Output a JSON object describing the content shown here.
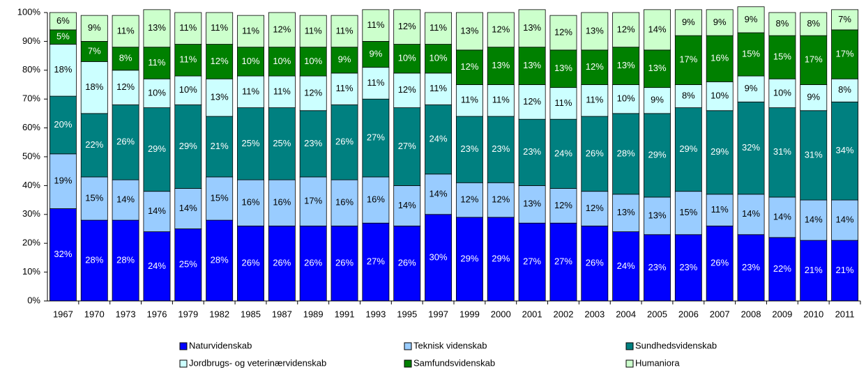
{
  "chart_data": {
    "type": "stacked_bar",
    "categories": [
      "1967",
      "1970",
      "1973",
      "1976",
      "1979",
      "1982",
      "1985",
      "1987",
      "1989",
      "1991",
      "1993",
      "1995",
      "1997",
      "1999",
      "2000",
      "2001",
      "2002",
      "2003",
      "2004",
      "2005",
      "2006",
      "2007",
      "2008",
      "2009",
      "2010",
      "2011"
    ],
    "ylim": [
      0,
      100
    ],
    "yticks": [
      {
        "value": 0,
        "label": "0%"
      },
      {
        "value": 10,
        "label": "10%"
      },
      {
        "value": 20,
        "label": "20%"
      },
      {
        "value": 30,
        "label": "30%"
      },
      {
        "value": 40,
        "label": "40%"
      },
      {
        "value": 50,
        "label": "50%"
      },
      {
        "value": 60,
        "label": "60%"
      },
      {
        "value": 70,
        "label": "70%"
      },
      {
        "value": 80,
        "label": "80%"
      },
      {
        "value": 90,
        "label": "90%"
      },
      {
        "value": 100,
        "label": "100%"
      }
    ],
    "legend": "bottom",
    "series": [
      {
        "name": "Naturvidenskab",
        "color": "#0000ff",
        "label_color": "#ffffff",
        "values": [
          32,
          28,
          28,
          24,
          25,
          28,
          26,
          26,
          26,
          26,
          27,
          26,
          30,
          29,
          29,
          27,
          27,
          26,
          24,
          23,
          23,
          26,
          23,
          22,
          21,
          21
        ],
        "value_labels": [
          "32%",
          "28%",
          "28%",
          "24%",
          "25%",
          "28%",
          "26%",
          "26%",
          "26%",
          "26%",
          "27%",
          "26%",
          "30%",
          "29%",
          "29%",
          "27%",
          "27%",
          "26%",
          "24%",
          "23%",
          "23%",
          "26%",
          "23%",
          "22%",
          "21%",
          "21%"
        ]
      },
      {
        "name": "Teknisk videnskab",
        "color": "#99ccff",
        "label_color": "#000000",
        "values": [
          19,
          15,
          14,
          14,
          14,
          15,
          16,
          16,
          17,
          16,
          16,
          14,
          14,
          12,
          12,
          13,
          12,
          12,
          13,
          13,
          15,
          11,
          14,
          14,
          14,
          14
        ],
        "value_labels": [
          "19%",
          "15%",
          "14%",
          "14%",
          "14%",
          "15%",
          "16%",
          "16%",
          "17%",
          "16%",
          "16%",
          "14%",
          "14%",
          "12%",
          "12%",
          "13%",
          "12%",
          "12%",
          "13%",
          "13%",
          "15%",
          "11%",
          "14%",
          "14%",
          "14%",
          "14%"
        ]
      },
      {
        "name": "Sundhedsvidenskab",
        "color": "#008080",
        "label_color": "#ffffff",
        "values": [
          20,
          22,
          26,
          29,
          29,
          21,
          25,
          25,
          23,
          26,
          27,
          27,
          24,
          23,
          23,
          23,
          24,
          26,
          28,
          29,
          29,
          29,
          32,
          31,
          31,
          34
        ],
        "value_labels": [
          "20%",
          "22%",
          "26%",
          "29%",
          "29%",
          "21%",
          "25%",
          "25%",
          "23%",
          "26%",
          "27%",
          "27%",
          "24%",
          "23%",
          "23%",
          "23%",
          "24%",
          "26%",
          "28%",
          "29%",
          "29%",
          "29%",
          "32%",
          "31%",
          "31%",
          "34%"
        ]
      },
      {
        "name": "Jordbrugs- og veterinærvidenskab",
        "color": "#ccffff",
        "label_color": "#000000",
        "values": [
          18,
          18,
          12,
          10,
          10,
          13,
          11,
          11,
          12,
          11,
          11,
          12,
          11,
          11,
          11,
          12,
          11,
          11,
          10,
          9,
          8,
          10,
          9,
          10,
          9,
          8
        ],
        "value_labels": [
          "18%",
          "18%",
          "12%",
          "10%",
          "10%",
          "13%",
          "11%",
          "11%",
          "12%",
          "11%",
          "11%",
          "12%",
          "11%",
          "11%",
          "11%",
          "12%",
          "11%",
          "11%",
          "10%",
          "9%",
          "8%",
          "10%",
          "9%",
          "10%",
          "9%",
          "8%"
        ]
      },
      {
        "name": "Samfundsvidenskab",
        "color": "#008000",
        "label_color": "#ffffff",
        "values": [
          5,
          7,
          8,
          11,
          11,
          12,
          10,
          10,
          10,
          9,
          9,
          10,
          10,
          12,
          13,
          13,
          13,
          12,
          13,
          13,
          17,
          16,
          15,
          15,
          17,
          17
        ],
        "value_labels": [
          "5%",
          "7%",
          "8%",
          "11%",
          "11%",
          "12%",
          "10%",
          "10%",
          "10%",
          "9%",
          "9%",
          "10%",
          "10%",
          "12%",
          "13%",
          "13%",
          "13%",
          "12%",
          "13%",
          "13%",
          "17%",
          "16%",
          "15%",
          "15%",
          "17%",
          "17%"
        ]
      },
      {
        "name": "Humaniora",
        "color": "#ccffcc",
        "label_color": "#000000",
        "values": [
          6,
          9,
          11,
          13,
          11,
          11,
          11,
          12,
          11,
          11,
          11,
          12,
          11,
          13,
          12,
          13,
          12,
          13,
          12,
          14,
          9,
          9,
          9,
          8,
          8,
          7
        ],
        "value_labels": [
          "6%",
          "9%",
          "11%",
          "13%",
          "11%",
          "11%",
          "11%",
          "12%",
          "11%",
          "11%",
          "11%",
          "12%",
          "11%",
          "13%",
          "12%",
          "13%",
          "12%",
          "13%",
          "12%",
          "14%",
          "9%",
          "9%",
          "9%",
          "8%",
          "8%",
          "7%"
        ]
      }
    ]
  }
}
